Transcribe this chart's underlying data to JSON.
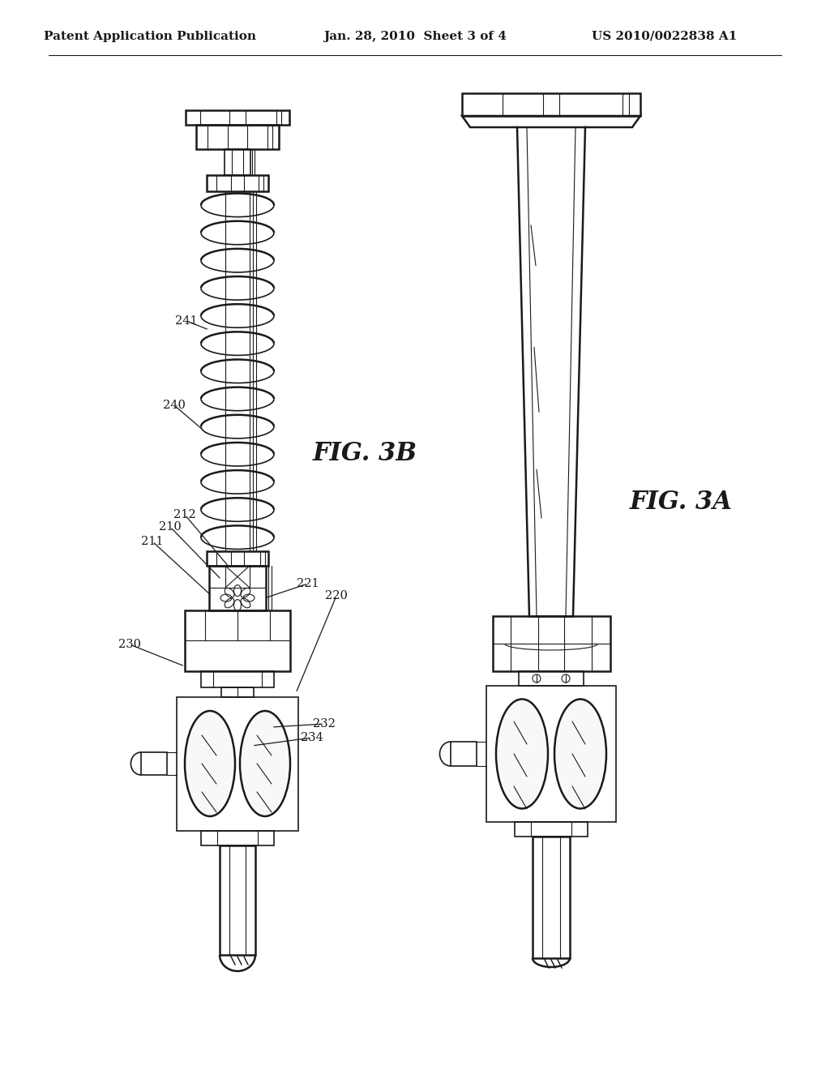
{
  "bg_color": "#ffffff",
  "line_color": "#1a1a1a",
  "header_text": "Patent Application Publication",
  "header_date": "Jan. 28, 2010  Sheet 3 of 4",
  "header_patent": "US 2010/0022838 A1",
  "fig3a_label": "FIG. 3A",
  "fig3b_label": "FIG. 3B"
}
